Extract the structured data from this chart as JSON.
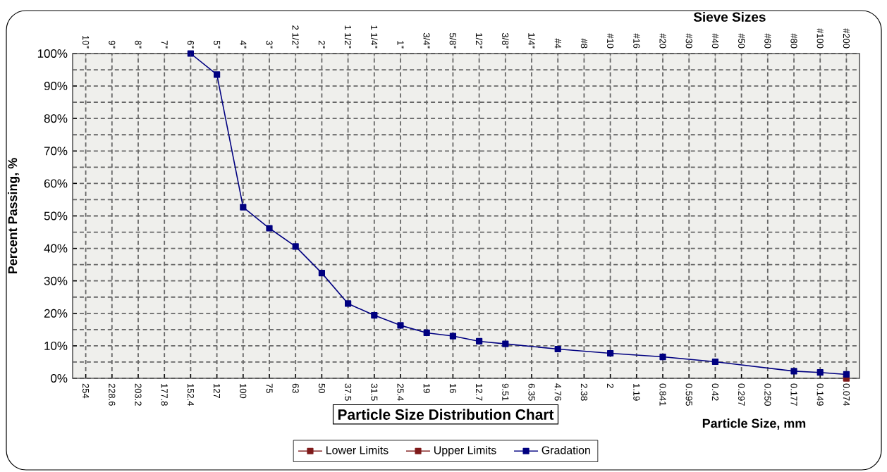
{
  "chart_data": {
    "type": "line",
    "title": "Particle Size Distribution Chart",
    "xlabel": "Particle Size, mm",
    "ylabel": "Percent Passing, %",
    "x2label": "Sieve Sizes",
    "categories": [
      "254",
      "228.6",
      "203.2",
      "177.8",
      "152.4",
      "127",
      "100",
      "75",
      "63",
      "50",
      "37.5",
      "31.5",
      "25.4",
      "19",
      "16",
      "12.7",
      "9.51",
      "6.35",
      "4.76",
      "2.38",
      "2",
      "1.19",
      "0.841",
      "0.595",
      "0.42",
      "0.297",
      "0.250",
      "0.177",
      "0.149",
      "0.074"
    ],
    "annotations": [
      "10\"",
      "9\"",
      "8\"",
      "7\"",
      "6\"",
      "5\"",
      "4\"",
      "3\"",
      "2 1/2\"",
      "2\"",
      "1 1/2\"",
      "1 1/4\"",
      "1\"",
      "3/4\"",
      "5/8\"",
      "1/2\"",
      "3/8\"",
      "1/4\"",
      "#4",
      "#8",
      "#10",
      "#16",
      "#20",
      "#30",
      "#40",
      "#50",
      "#60",
      "#80",
      "#100",
      "#200"
    ],
    "series": [
      {
        "name": "Lower Limits",
        "color": "#7f1a1a",
        "values": [
          null,
          null,
          null,
          null,
          null,
          null,
          null,
          null,
          null,
          null,
          null,
          null,
          null,
          null,
          null,
          null,
          null,
          null,
          null,
          null,
          null,
          null,
          null,
          null,
          null,
          null,
          null,
          null,
          null,
          0
        ]
      },
      {
        "name": "Upper Limits",
        "color": "#7f1a1a",
        "values": [
          null,
          null,
          null,
          null,
          null,
          null,
          null,
          null,
          null,
          null,
          null,
          null,
          null,
          null,
          null,
          null,
          null,
          null,
          null,
          null,
          null,
          null,
          null,
          null,
          null,
          null,
          null,
          null,
          null,
          0
        ]
      },
      {
        "name": "Gradation",
        "color": "#000080",
        "values": [
          null,
          null,
          null,
          null,
          100,
          93.5,
          52.7,
          46.2,
          40.6,
          32.4,
          23.0,
          19.4,
          16.3,
          14.0,
          13.0,
          11.4,
          10.6,
          null,
          9.0,
          null,
          7.7,
          null,
          6.6,
          null,
          5.1,
          null,
          null,
          2.2,
          1.8,
          1.2
        ]
      }
    ],
    "ylim": [
      0,
      100
    ],
    "yticks": [
      {
        "value": 0,
        "label": "0%"
      },
      {
        "value": 10,
        "label": "10%"
      },
      {
        "value": 20,
        "label": "20%"
      },
      {
        "value": 30,
        "label": "30%"
      },
      {
        "value": 40,
        "label": "40%"
      },
      {
        "value": 50,
        "label": "50%"
      },
      {
        "value": 60,
        "label": "60%"
      },
      {
        "value": 70,
        "label": "70%"
      },
      {
        "value": 80,
        "label": "80%"
      },
      {
        "value": 90,
        "label": "90%"
      },
      {
        "value": 100,
        "label": "100%"
      }
    ],
    "grid": true,
    "legend": "bottom",
    "marker": "square",
    "line_style": "solid"
  }
}
